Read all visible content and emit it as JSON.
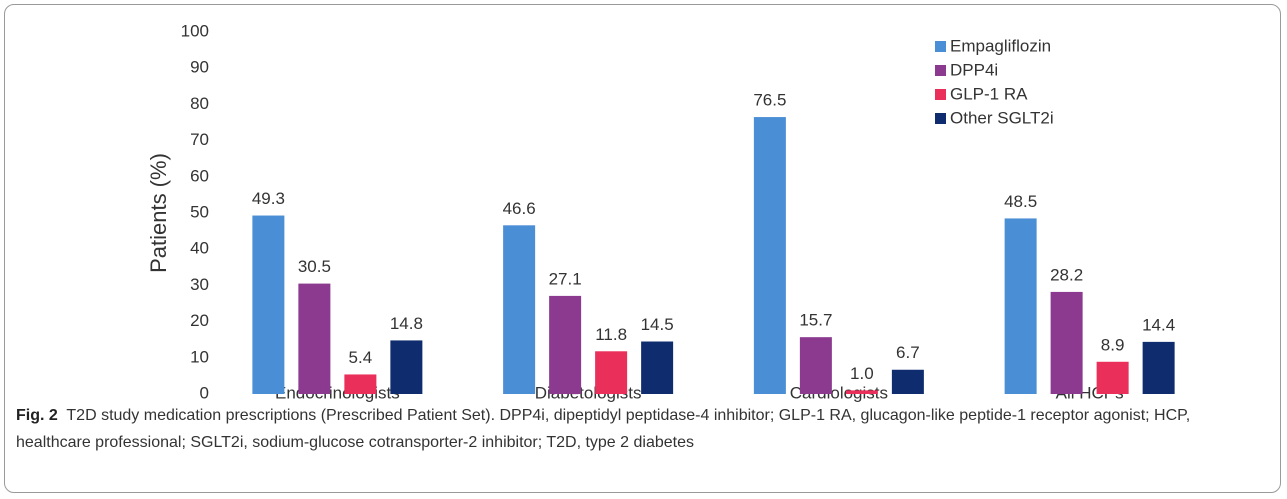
{
  "chart_data": {
    "type": "bar",
    "y_label": "Patients (%)",
    "categories": [
      "Endocrinologists",
      "Diabetologists",
      "Cardiologists",
      "All HCPs"
    ],
    "series": [
      {
        "name": "Empagliflozin",
        "color": "#4a8ed6",
        "values": [
          49.3,
          46.6,
          76.5,
          48.5
        ]
      },
      {
        "name": "DPP4i",
        "color": "#8b3a8f",
        "values": [
          30.5,
          27.1,
          15.7,
          28.2
        ]
      },
      {
        "name": "GLP-1 RA",
        "color": "#ea2f5b",
        "values": [
          5.4,
          11.8,
          1.0,
          8.9
        ],
        "value_labels": [
          "5.4",
          "11.8",
          "1.0",
          "8.9"
        ]
      },
      {
        "name": "Other SGLT2i",
        "color": "#0f2c6e",
        "values": [
          14.8,
          14.5,
          6.7,
          14.4
        ]
      }
    ],
    "ylim": [
      0,
      100
    ],
    "yticks": [
      0,
      10,
      20,
      30,
      40,
      50,
      60,
      70,
      80,
      90,
      100
    ],
    "legend": "upper-right",
    "caption_label": "Fig. 2",
    "caption": "T2D study medication prescriptions (Prescribed Patient Set). DPP4i, dipeptidyl peptidase-4 inhibitor; GLP-1 RA, glucagon-like peptide-1 receptor agonist; HCP, healthcare professional; SGLT2i, sodium-glucose cotransporter-2 inhibitor; T2D, type 2 diabetes"
  }
}
